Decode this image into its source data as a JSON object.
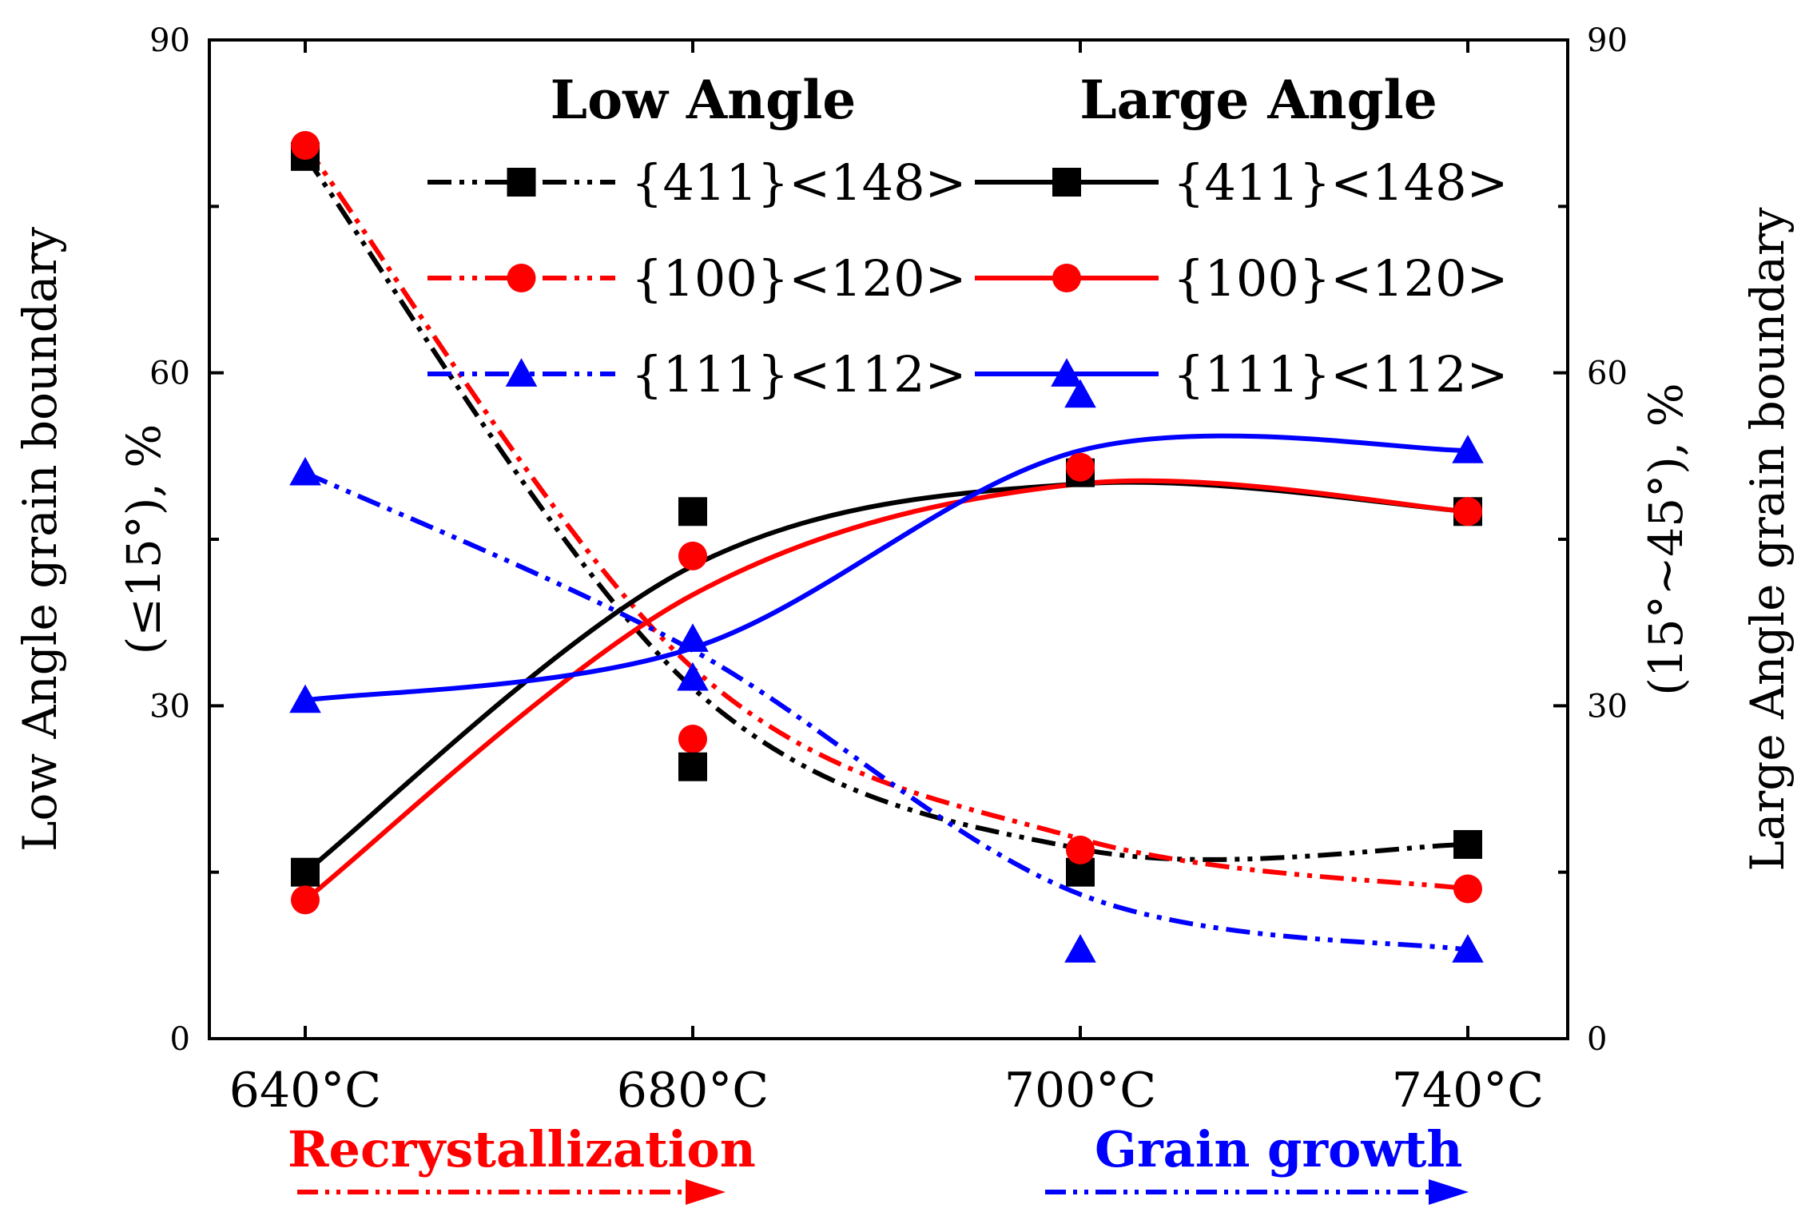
{
  "chart_data": {
    "type": "line",
    "categories": [
      "640°C",
      "680°C",
      "700°C",
      "740°C"
    ],
    "y_left": {
      "label_line1": "Low Angle grain boundary",
      "label_line2": "(≤15°), %",
      "lim": [
        0,
        90
      ],
      "ticks": [
        "0",
        "30",
        "60",
        "90"
      ]
    },
    "y_right": {
      "label_line1": "Large Angle grain boundary",
      "label_line2": "(15°~45°), %",
      "lim": [
        0,
        90
      ],
      "ticks": [
        "0",
        "30",
        "60",
        "90"
      ]
    },
    "legend": {
      "low_heading": "Low Angle",
      "large_heading": "Large Angle"
    },
    "series": [
      {
        "name": "{411}<148>",
        "group": "Low Angle",
        "marker": "square",
        "style": "dashdot",
        "color": "#000000",
        "values": [
          79.5,
          47.5,
          15,
          17.5
        ],
        "fit": [
          79.5,
          31.6,
          17.1,
          17.5
        ]
      },
      {
        "name": "{100}<120>",
        "group": "Low Angle",
        "marker": "circle",
        "style": "dashdot",
        "color": "#ff0000",
        "values": [
          80.5,
          27,
          17,
          13.5
        ],
        "fit": [
          80.5,
          33.4,
          18,
          13.5
        ]
      },
      {
        "name": "{111}<112>",
        "group": "Low Angle",
        "marker": "triangle",
        "style": "dashdot",
        "color": "#0000ff",
        "values": [
          51,
          32.5,
          8,
          8
        ],
        "fit": [
          51,
          35,
          13,
          8
        ]
      },
      {
        "name": "{411}<148>",
        "group": "Large Angle",
        "marker": "square",
        "style": "solid",
        "color": "#000000",
        "values": [
          15,
          24.5,
          51,
          47.5
        ],
        "fit": [
          15,
          42.6,
          50,
          47.5
        ]
      },
      {
        "name": "{100}<120>",
        "group": "Large Angle",
        "marker": "circle",
        "style": "solid",
        "color": "#ff0000",
        "values": [
          12.5,
          43.5,
          51.5,
          47.5
        ],
        "fit": [
          12.5,
          40,
          50,
          47.5
        ]
      },
      {
        "name": "{111}<112>",
        "group": "Large Angle",
        "marker": "triangle",
        "style": "solid",
        "color": "#0000ff",
        "values": [
          30.5,
          36,
          58,
          53
        ],
        "fit": [
          30.5,
          35.2,
          53,
          53
        ]
      }
    ],
    "annotations": [
      {
        "text": "Recrystallization",
        "color": "#ff0000"
      },
      {
        "text": "Grain growth",
        "color": "#0000ff"
      }
    ]
  }
}
